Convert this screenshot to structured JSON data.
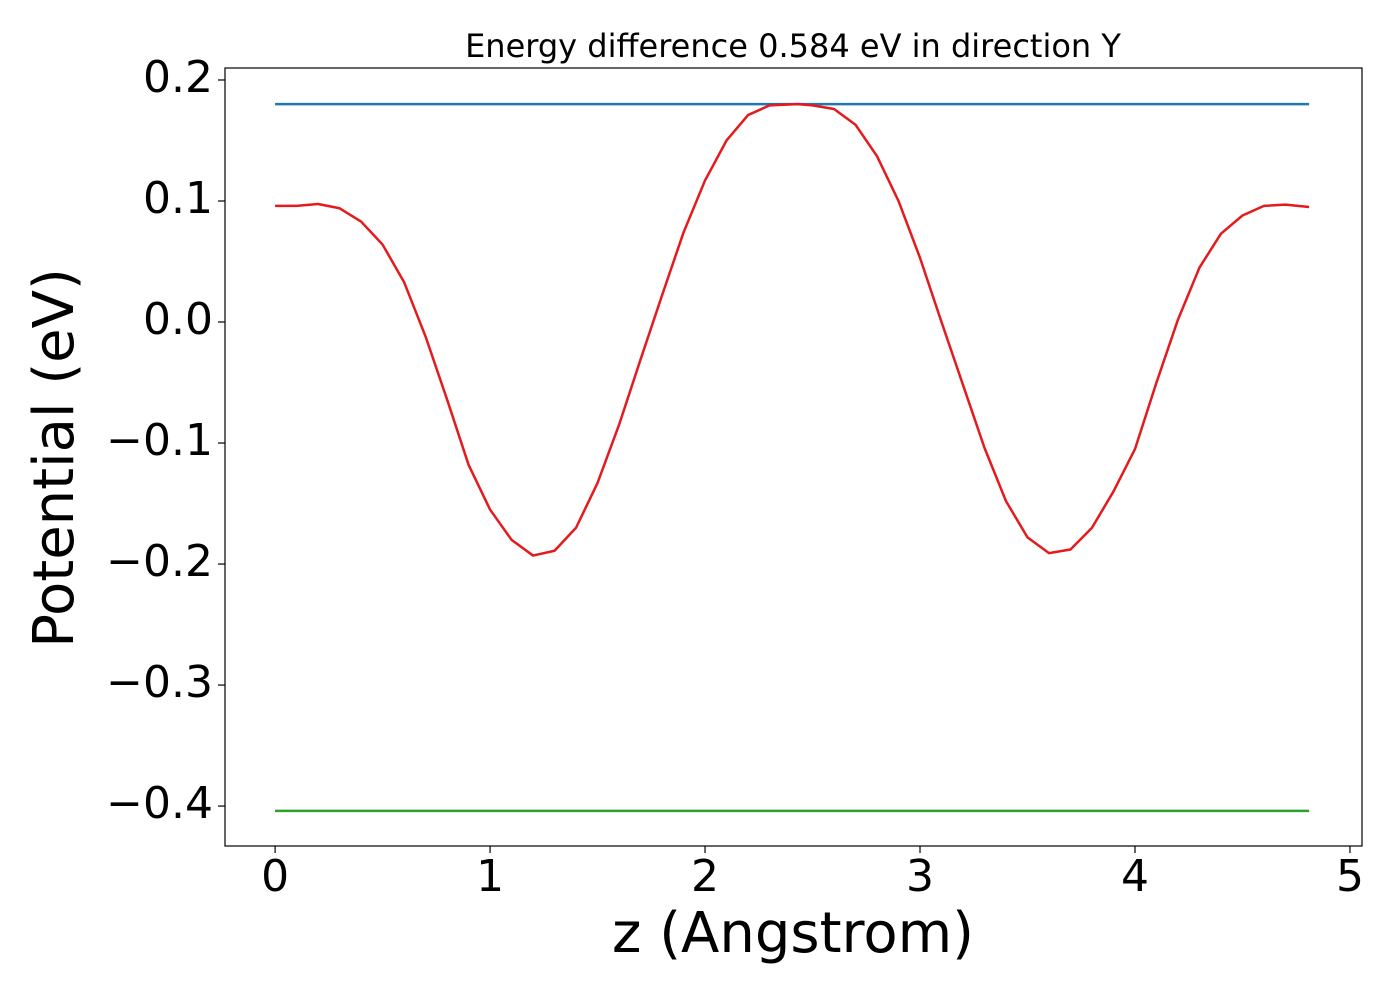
{
  "chart_data": {
    "type": "line",
    "title": "Energy difference 0.584 eV in direction Y",
    "xlabel": "z (Angstrom)",
    "ylabel": "Potential (eV)",
    "xlim": [
      -0.233,
      5.056
    ],
    "ylim": [
      -0.433,
      0.2099
    ],
    "xticks": [
      0,
      1,
      2,
      3,
      4,
      5
    ],
    "yticks": [
      {
        "value": -0.4,
        "label": "−0.4"
      },
      {
        "value": -0.3,
        "label": "−0.3"
      },
      {
        "value": -0.2,
        "label": "−0.2"
      },
      {
        "value": -0.1,
        "label": "−0.1"
      },
      {
        "value": 0,
        "label": "0.0"
      },
      0.1,
      0.2
    ],
    "grid": false,
    "series": [
      {
        "color": "#1f77b4",
        "x": [
          0,
          4.81
        ],
        "values": [
          0.18,
          0.18
        ]
      },
      {
        "color": "#2ca02c",
        "x": [
          0,
          4.81
        ],
        "values": [
          -0.404,
          -0.404
        ]
      },
      {
        "color": "#e41a1c",
        "x": [
          0,
          0.1,
          0.2,
          0.3,
          0.4,
          0.5,
          0.6,
          0.7,
          0.8,
          0.9,
          1.0,
          1.1,
          1.2,
          1.3,
          1.4,
          1.5,
          1.6,
          1.7,
          1.8,
          1.9,
          2.0,
          2.1,
          2.2,
          2.3,
          2.43,
          2.5,
          2.6,
          2.7,
          2.8,
          2.9,
          3.0,
          3.1,
          3.2,
          3.3,
          3.4,
          3.5,
          3.6,
          3.7,
          3.8,
          3.9,
          4.0,
          4.1,
          4.2,
          4.3,
          4.4,
          4.5,
          4.6,
          4.7,
          4.81
        ],
        "values": [
          0.096,
          0.096,
          0.0975,
          0.094,
          0.083,
          0.064,
          0.033,
          -0.012,
          -0.064,
          -0.118,
          -0.155,
          -0.18,
          -0.193,
          -0.189,
          -0.17,
          -0.133,
          -0.085,
          -0.031,
          0.022,
          0.074,
          0.117,
          0.15,
          0.171,
          0.179,
          0.18,
          0.179,
          0.176,
          0.163,
          0.137,
          0.1,
          0.053,
          0.0,
          -0.052,
          -0.104,
          -0.148,
          -0.178,
          -0.191,
          -0.188,
          -0.17,
          -0.14,
          -0.105,
          -0.05,
          0.002,
          0.045,
          0.073,
          0.088,
          0.096,
          0.097,
          0.095
        ]
      }
    ]
  }
}
